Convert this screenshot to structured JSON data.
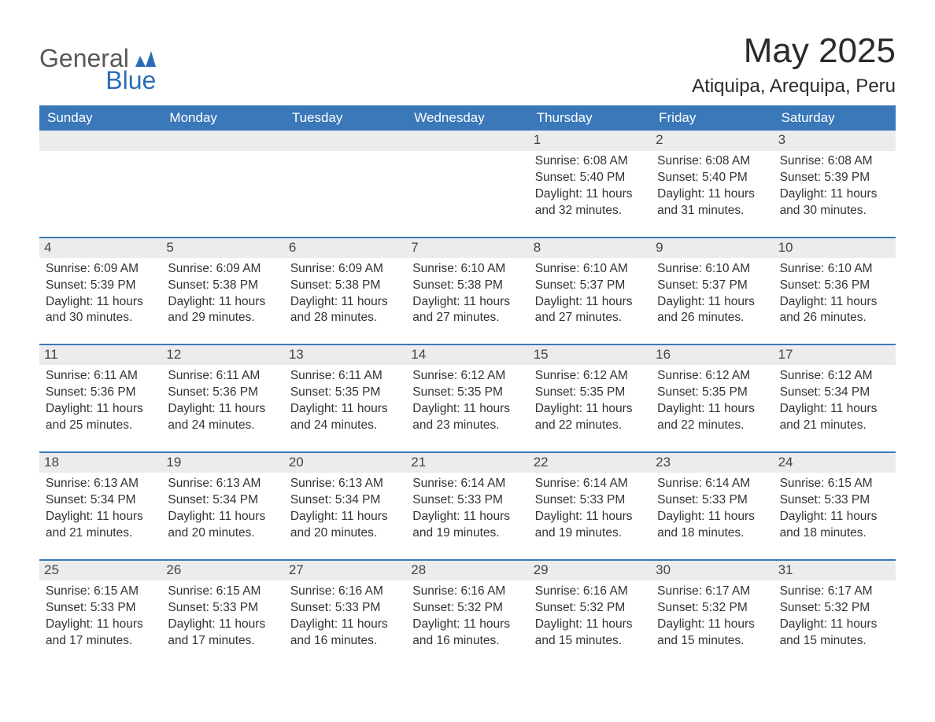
{
  "logo": {
    "word1": "General",
    "word2": "Blue"
  },
  "title": "May 2025",
  "location": "Atiquipa, Arequipa, Peru",
  "colors": {
    "header_bg": "#3a78b9",
    "header_text": "#ffffff",
    "daynum_bg": "#ececec",
    "daynum_border": "#3a78b9",
    "text": "#333333",
    "logo_general": "#585858",
    "logo_blue": "#2a6db5",
    "page_bg": "#ffffff"
  },
  "typography": {
    "title_fontsize": 44,
    "location_fontsize": 24,
    "dayheader_fontsize": 17,
    "daynum_fontsize": 17,
    "details_fontsize": 15.5,
    "logo_fontsize": 32
  },
  "day_headers": [
    "Sunday",
    "Monday",
    "Tuesday",
    "Wednesday",
    "Thursday",
    "Friday",
    "Saturday"
  ],
  "weeks": [
    [
      {
        "day": "",
        "sunrise": "",
        "sunset": "",
        "daylight": ""
      },
      {
        "day": "",
        "sunrise": "",
        "sunset": "",
        "daylight": ""
      },
      {
        "day": "",
        "sunrise": "",
        "sunset": "",
        "daylight": ""
      },
      {
        "day": "",
        "sunrise": "",
        "sunset": "",
        "daylight": ""
      },
      {
        "day": "1",
        "sunrise": "Sunrise: 6:08 AM",
        "sunset": "Sunset: 5:40 PM",
        "daylight": "Daylight: 11 hours and 32 minutes."
      },
      {
        "day": "2",
        "sunrise": "Sunrise: 6:08 AM",
        "sunset": "Sunset: 5:40 PM",
        "daylight": "Daylight: 11 hours and 31 minutes."
      },
      {
        "day": "3",
        "sunrise": "Sunrise: 6:08 AM",
        "sunset": "Sunset: 5:39 PM",
        "daylight": "Daylight: 11 hours and 30 minutes."
      }
    ],
    [
      {
        "day": "4",
        "sunrise": "Sunrise: 6:09 AM",
        "sunset": "Sunset: 5:39 PM",
        "daylight": "Daylight: 11 hours and 30 minutes."
      },
      {
        "day": "5",
        "sunrise": "Sunrise: 6:09 AM",
        "sunset": "Sunset: 5:38 PM",
        "daylight": "Daylight: 11 hours and 29 minutes."
      },
      {
        "day": "6",
        "sunrise": "Sunrise: 6:09 AM",
        "sunset": "Sunset: 5:38 PM",
        "daylight": "Daylight: 11 hours and 28 minutes."
      },
      {
        "day": "7",
        "sunrise": "Sunrise: 6:10 AM",
        "sunset": "Sunset: 5:38 PM",
        "daylight": "Daylight: 11 hours and 27 minutes."
      },
      {
        "day": "8",
        "sunrise": "Sunrise: 6:10 AM",
        "sunset": "Sunset: 5:37 PM",
        "daylight": "Daylight: 11 hours and 27 minutes."
      },
      {
        "day": "9",
        "sunrise": "Sunrise: 6:10 AM",
        "sunset": "Sunset: 5:37 PM",
        "daylight": "Daylight: 11 hours and 26 minutes."
      },
      {
        "day": "10",
        "sunrise": "Sunrise: 6:10 AM",
        "sunset": "Sunset: 5:36 PM",
        "daylight": "Daylight: 11 hours and 26 minutes."
      }
    ],
    [
      {
        "day": "11",
        "sunrise": "Sunrise: 6:11 AM",
        "sunset": "Sunset: 5:36 PM",
        "daylight": "Daylight: 11 hours and 25 minutes."
      },
      {
        "day": "12",
        "sunrise": "Sunrise: 6:11 AM",
        "sunset": "Sunset: 5:36 PM",
        "daylight": "Daylight: 11 hours and 24 minutes."
      },
      {
        "day": "13",
        "sunrise": "Sunrise: 6:11 AM",
        "sunset": "Sunset: 5:35 PM",
        "daylight": "Daylight: 11 hours and 24 minutes."
      },
      {
        "day": "14",
        "sunrise": "Sunrise: 6:12 AM",
        "sunset": "Sunset: 5:35 PM",
        "daylight": "Daylight: 11 hours and 23 minutes."
      },
      {
        "day": "15",
        "sunrise": "Sunrise: 6:12 AM",
        "sunset": "Sunset: 5:35 PM",
        "daylight": "Daylight: 11 hours and 22 minutes."
      },
      {
        "day": "16",
        "sunrise": "Sunrise: 6:12 AM",
        "sunset": "Sunset: 5:35 PM",
        "daylight": "Daylight: 11 hours and 22 minutes."
      },
      {
        "day": "17",
        "sunrise": "Sunrise: 6:12 AM",
        "sunset": "Sunset: 5:34 PM",
        "daylight": "Daylight: 11 hours and 21 minutes."
      }
    ],
    [
      {
        "day": "18",
        "sunrise": "Sunrise: 6:13 AM",
        "sunset": "Sunset: 5:34 PM",
        "daylight": "Daylight: 11 hours and 21 minutes."
      },
      {
        "day": "19",
        "sunrise": "Sunrise: 6:13 AM",
        "sunset": "Sunset: 5:34 PM",
        "daylight": "Daylight: 11 hours and 20 minutes."
      },
      {
        "day": "20",
        "sunrise": "Sunrise: 6:13 AM",
        "sunset": "Sunset: 5:34 PM",
        "daylight": "Daylight: 11 hours and 20 minutes."
      },
      {
        "day": "21",
        "sunrise": "Sunrise: 6:14 AM",
        "sunset": "Sunset: 5:33 PM",
        "daylight": "Daylight: 11 hours and 19 minutes."
      },
      {
        "day": "22",
        "sunrise": "Sunrise: 6:14 AM",
        "sunset": "Sunset: 5:33 PM",
        "daylight": "Daylight: 11 hours and 19 minutes."
      },
      {
        "day": "23",
        "sunrise": "Sunrise: 6:14 AM",
        "sunset": "Sunset: 5:33 PM",
        "daylight": "Daylight: 11 hours and 18 minutes."
      },
      {
        "day": "24",
        "sunrise": "Sunrise: 6:15 AM",
        "sunset": "Sunset: 5:33 PM",
        "daylight": "Daylight: 11 hours and 18 minutes."
      }
    ],
    [
      {
        "day": "25",
        "sunrise": "Sunrise: 6:15 AM",
        "sunset": "Sunset: 5:33 PM",
        "daylight": "Daylight: 11 hours and 17 minutes."
      },
      {
        "day": "26",
        "sunrise": "Sunrise: 6:15 AM",
        "sunset": "Sunset: 5:33 PM",
        "daylight": "Daylight: 11 hours and 17 minutes."
      },
      {
        "day": "27",
        "sunrise": "Sunrise: 6:16 AM",
        "sunset": "Sunset: 5:33 PM",
        "daylight": "Daylight: 11 hours and 16 minutes."
      },
      {
        "day": "28",
        "sunrise": "Sunrise: 6:16 AM",
        "sunset": "Sunset: 5:32 PM",
        "daylight": "Daylight: 11 hours and 16 minutes."
      },
      {
        "day": "29",
        "sunrise": "Sunrise: 6:16 AM",
        "sunset": "Sunset: 5:32 PM",
        "daylight": "Daylight: 11 hours and 15 minutes."
      },
      {
        "day": "30",
        "sunrise": "Sunrise: 6:17 AM",
        "sunset": "Sunset: 5:32 PM",
        "daylight": "Daylight: 11 hours and 15 minutes."
      },
      {
        "day": "31",
        "sunrise": "Sunrise: 6:17 AM",
        "sunset": "Sunset: 5:32 PM",
        "daylight": "Daylight: 11 hours and 15 minutes."
      }
    ]
  ]
}
